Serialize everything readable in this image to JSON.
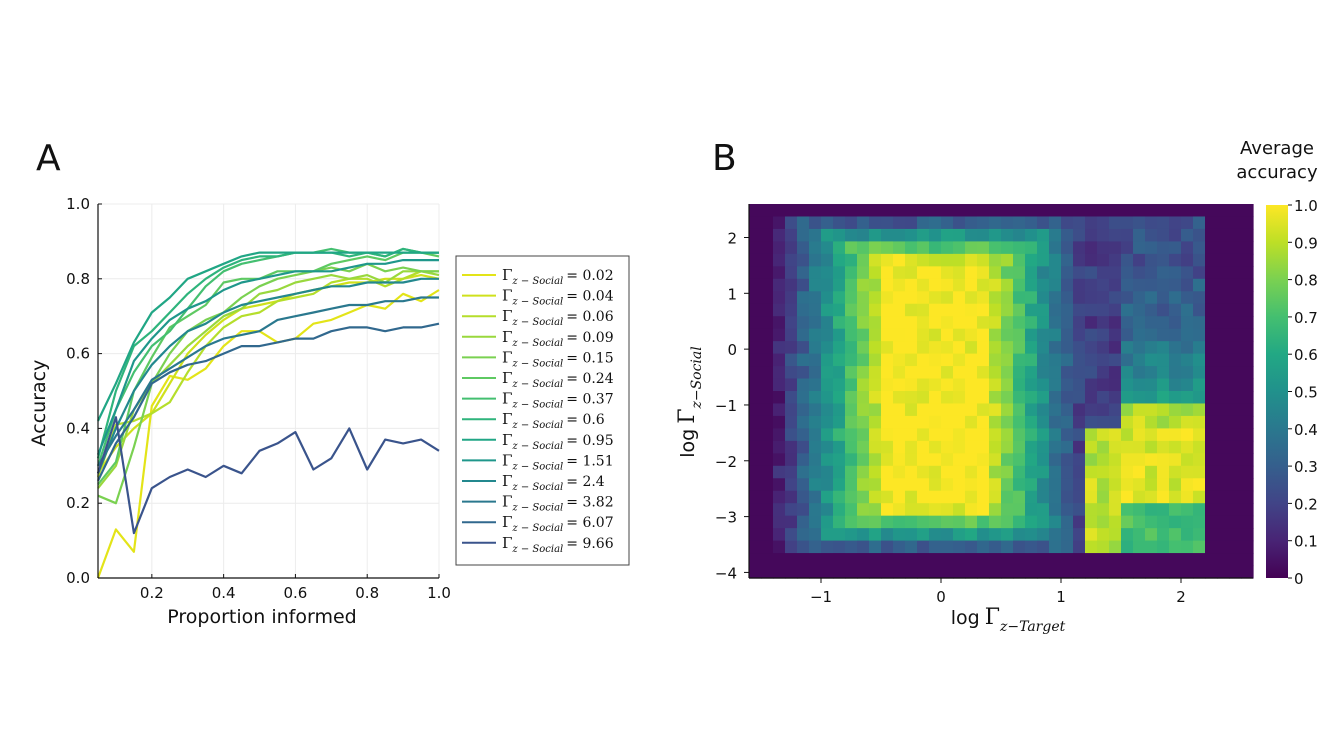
{
  "panels": {
    "a_label": "A",
    "b_label": "B"
  },
  "chart_data": [
    {
      "type": "line",
      "xlabel": "Proportion informed",
      "ylabel": "Accuracy",
      "xlim": [
        0.05,
        1.0
      ],
      "ylim": [
        0.0,
        1.0
      ],
      "xticks": [
        "0.2",
        "0.4",
        "0.6",
        "0.8",
        "1.0"
      ],
      "yticks": [
        "0.0",
        "0.2",
        "0.4",
        "0.6",
        "0.8",
        "1.0"
      ],
      "grid": true,
      "legend_position": "right",
      "legend_symbol": "Γ",
      "legend_subscript": "z − Social",
      "x": [
        0.05,
        0.1,
        0.15,
        0.2,
        0.25,
        0.3,
        0.35,
        0.4,
        0.45,
        0.5,
        0.55,
        0.6,
        0.65,
        0.7,
        0.75,
        0.8,
        0.85,
        0.9,
        0.95,
        1.0
      ],
      "series": [
        {
          "name": "0.02",
          "color": "#e3e418",
          "values": [
            0.0,
            0.13,
            0.07,
            0.46,
            0.54,
            0.53,
            0.56,
            0.62,
            0.66,
            0.66,
            0.63,
            0.64,
            0.68,
            0.69,
            0.71,
            0.73,
            0.72,
            0.76,
            0.74,
            0.77
          ]
        },
        {
          "name": "0.04",
          "color": "#cfe11c",
          "values": [
            0.28,
            0.35,
            0.4,
            0.44,
            0.52,
            0.6,
            0.65,
            0.69,
            0.72,
            0.73,
            0.74,
            0.76,
            0.77,
            0.78,
            0.79,
            0.79,
            0.8,
            0.8,
            0.81,
            0.8
          ]
        },
        {
          "name": "0.06",
          "color": "#b5de2b",
          "values": [
            0.27,
            0.41,
            0.42,
            0.44,
            0.47,
            0.55,
            0.62,
            0.67,
            0.7,
            0.71,
            0.74,
            0.75,
            0.76,
            0.79,
            0.8,
            0.8,
            0.78,
            0.8,
            0.82,
            0.82
          ]
        },
        {
          "name": "0.09",
          "color": "#99d83d",
          "values": [
            0.24,
            0.3,
            0.45,
            0.52,
            0.57,
            0.62,
            0.66,
            0.7,
            0.72,
            0.76,
            0.77,
            0.79,
            0.8,
            0.81,
            0.8,
            0.81,
            0.79,
            0.82,
            0.82,
            0.81
          ]
        },
        {
          "name": "0.15",
          "color": "#7ad151",
          "values": [
            0.22,
            0.2,
            0.35,
            0.52,
            0.6,
            0.66,
            0.69,
            0.71,
            0.75,
            0.78,
            0.8,
            0.81,
            0.82,
            0.83,
            0.82,
            0.84,
            0.82,
            0.83,
            0.82,
            0.82
          ]
        },
        {
          "name": "0.24",
          "color": "#5ec962",
          "values": [
            0.25,
            0.31,
            0.5,
            0.59,
            0.67,
            0.7,
            0.73,
            0.79,
            0.8,
            0.8,
            0.82,
            0.82,
            0.82,
            0.84,
            0.85,
            0.86,
            0.85,
            0.87,
            0.87,
            0.86
          ]
        },
        {
          "name": "0.37",
          "color": "#44bf70",
          "values": [
            0.3,
            0.45,
            0.55,
            0.62,
            0.66,
            0.72,
            0.78,
            0.82,
            0.84,
            0.85,
            0.86,
            0.87,
            0.87,
            0.88,
            0.87,
            0.87,
            0.86,
            0.88,
            0.87,
            0.87
          ]
        },
        {
          "name": "0.6",
          "color": "#2fb47c",
          "values": [
            0.32,
            0.5,
            0.62,
            0.66,
            0.71,
            0.76,
            0.8,
            0.83,
            0.85,
            0.86,
            0.86,
            0.87,
            0.87,
            0.87,
            0.86,
            0.87,
            0.86,
            0.88,
            0.87,
            0.87
          ]
        },
        {
          "name": "0.95",
          "color": "#21a685",
          "values": [
            0.42,
            0.52,
            0.63,
            0.71,
            0.75,
            0.8,
            0.82,
            0.84,
            0.86,
            0.87,
            0.87,
            0.87,
            0.87,
            0.87,
            0.87,
            0.87,
            0.87,
            0.87,
            0.87,
            0.87
          ]
        },
        {
          "name": "1.51",
          "color": "#1f978b",
          "values": [
            0.33,
            0.45,
            0.58,
            0.64,
            0.69,
            0.72,
            0.74,
            0.77,
            0.79,
            0.8,
            0.81,
            0.82,
            0.82,
            0.82,
            0.83,
            0.84,
            0.84,
            0.85,
            0.85,
            0.85
          ]
        },
        {
          "name": "2.4",
          "color": "#23888e",
          "values": [
            0.28,
            0.4,
            0.5,
            0.57,
            0.62,
            0.66,
            0.68,
            0.71,
            0.73,
            0.74,
            0.75,
            0.76,
            0.77,
            0.78,
            0.78,
            0.79,
            0.79,
            0.79,
            0.8,
            0.8
          ]
        },
        {
          "name": "3.82",
          "color": "#2a788e",
          "values": [
            0.3,
            0.38,
            0.45,
            0.53,
            0.56,
            0.59,
            0.62,
            0.64,
            0.65,
            0.66,
            0.69,
            0.7,
            0.71,
            0.72,
            0.73,
            0.73,
            0.74,
            0.74,
            0.75,
            0.75
          ]
        },
        {
          "name": "6.07",
          "color": "#31688e",
          "values": [
            0.26,
            0.36,
            0.43,
            0.52,
            0.55,
            0.57,
            0.58,
            0.6,
            0.62,
            0.62,
            0.63,
            0.64,
            0.64,
            0.66,
            0.67,
            0.67,
            0.66,
            0.67,
            0.67,
            0.68
          ]
        },
        {
          "name": "9.66",
          "color": "#3a548c",
          "values": [
            0.28,
            0.43,
            0.12,
            0.24,
            0.27,
            0.29,
            0.27,
            0.3,
            0.28,
            0.34,
            0.36,
            0.39,
            0.29,
            0.32,
            0.4,
            0.29,
            0.37,
            0.36,
            0.37,
            0.34
          ]
        }
      ]
    },
    {
      "type": "heatmap",
      "xlabel": "log",
      "ylabel": "log",
      "xlabel_symbol": "Γ",
      "xlabel_subscript": "z−Target",
      "ylabel_symbol": "Γ",
      "ylabel_subscript": "z−Social",
      "xlim": [
        -1.6,
        2.6
      ],
      "ylim": [
        -4.1,
        2.6
      ],
      "xticks": [
        -1,
        0,
        1,
        2
      ],
      "xtick_labels": [
        "−1",
        "0",
        "1",
        "2"
      ],
      "yticks": [
        2,
        1,
        0,
        -1,
        -2,
        -3,
        -4
      ],
      "ytick_labels": [
        "2",
        "1",
        "0",
        "−1",
        "−2",
        "−3",
        "−4"
      ],
      "nx": 42,
      "ny": 30,
      "colorbar": {
        "title_line1": "Average",
        "title_line2": "accuracy",
        "range": [
          0,
          1
        ],
        "ticks": [
          0,
          0.1,
          0.2,
          0.3,
          0.4,
          0.5,
          0.6,
          0.7,
          0.8,
          0.9,
          1.0
        ],
        "tick_labels": [
          "0",
          "0.1",
          "0.2",
          "0.3",
          "0.4",
          "0.5",
          "0.6",
          "0.7",
          "0.8",
          "0.9",
          "1.0"
        ],
        "colormap": "viridis"
      }
    }
  ]
}
